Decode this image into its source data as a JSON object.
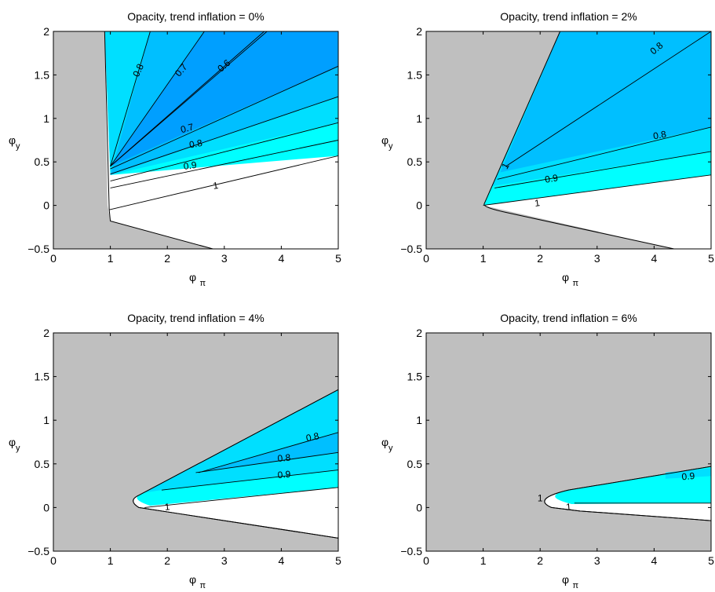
{
  "chart_data": [
    {
      "type": "contour",
      "title": "Opacity, trend inflation = 0%",
      "xlabel": {
        "base": "φ",
        "sub": "π"
      },
      "ylabel": {
        "base": "φ",
        "sub": "y"
      },
      "xlim": [
        0,
        5
      ],
      "ylim": [
        -0.5,
        2
      ],
      "xticks": [
        0,
        1,
        2,
        3,
        4,
        5
      ],
      "yticks": [
        -0.5,
        0,
        0.5,
        1,
        1.5,
        2
      ],
      "ytick_labels": [
        "−0.5",
        "0",
        "0.5",
        "1",
        "1.5",
        "2"
      ],
      "colors": {
        "indeterminate": "#BFBFBF",
        "level_1": "#FFFFFF",
        "level_0.9": "#00FFFF",
        "level_0.8": "#00DFFF",
        "level_0.7": "#00BFFF",
        "level_0.6": "#009FFF"
      },
      "indeterminate_region": [
        [
          0,
          2
        ],
        [
          0.9,
          2
        ],
        [
          0.95,
          0
        ],
        [
          1.0,
          -0.18
        ],
        [
          2.8,
          -0.5
        ],
        [
          0,
          -0.5
        ]
      ],
      "fan_origin": [
        1.0,
        0.35
      ],
      "contour_lines": [
        {
          "level": "1",
          "points": [
            [
              0.98,
              -0.05
            ],
            [
              5,
              0.57
            ]
          ]
        },
        {
          "level": "0.9",
          "points": [
            [
              1.0,
              0.2
            ],
            [
              5,
              0.75
            ]
          ]
        },
        {
          "level": "0.9",
          "points": [
            [
              1.0,
              0.28
            ],
            [
              5,
              0.95
            ]
          ]
        },
        {
          "level": "0.8",
          "points": [
            [
              1.0,
              0.36
            ],
            [
              5,
              1.25
            ]
          ]
        },
        {
          "level": "0.7",
          "points": [
            [
              1.0,
              0.42
            ],
            [
              5,
              1.6
            ]
          ]
        },
        {
          "level": "0.6",
          "points": [
            [
              1.0,
              0.45
            ],
            [
              3.7,
              2.0
            ]
          ]
        },
        {
          "level": "0.6",
          "points": [
            [
              1.0,
              0.45
            ],
            [
              3.75,
              2.0
            ]
          ]
        },
        {
          "level": "0.7",
          "points": [
            [
              1.0,
              0.45
            ],
            [
              2.65,
              2.0
            ]
          ]
        },
        {
          "level": "0.8",
          "points": [
            [
              1.0,
              0.45
            ],
            [
              1.7,
              2.0
            ]
          ]
        }
      ],
      "contour_labels": [
        {
          "text": "0.8",
          "at": [
            1.5,
            1.55
          ],
          "angle": -65
        },
        {
          "text": "0.7",
          "at": [
            2.25,
            1.55
          ],
          "angle": -50
        },
        {
          "text": "0.6",
          "at": [
            3.0,
            1.6
          ],
          "angle": -40
        },
        {
          "text": "0.7",
          "at": [
            2.35,
            0.88
          ],
          "angle": -15
        },
        {
          "text": "0.8",
          "at": [
            2.5,
            0.7
          ],
          "angle": -10
        },
        {
          "text": "0.9",
          "at": [
            2.4,
            0.45
          ],
          "angle": -8
        },
        {
          "text": "1",
          "at": [
            2.85,
            0.22
          ],
          "angle": -8
        }
      ]
    },
    {
      "type": "contour",
      "title": "Opacity, trend inflation = 2%",
      "xlabel": {
        "base": "φ",
        "sub": "π"
      },
      "ylabel": {
        "base": "φ",
        "sub": "y"
      },
      "xlim": [
        0,
        5
      ],
      "ylim": [
        -0.5,
        2
      ],
      "xticks": [
        0,
        1,
        2,
        3,
        4,
        5
      ],
      "yticks": [
        -0.5,
        0,
        0.5,
        1,
        1.5,
        2
      ],
      "ytick_labels": [
        "−0.5",
        "0",
        "0.5",
        "1",
        "1.5",
        "2"
      ],
      "colors": {
        "indeterminate": "#BFBFBF",
        "level_1": "#FFFFFF",
        "level_0.9": "#00FFFF",
        "level_0.8": "#00DFFF",
        "level_0.7": "#00BFFF"
      },
      "indeterminate_region": [
        [
          0,
          2
        ],
        [
          2.35,
          2
        ],
        [
          1.0,
          0.0
        ],
        [
          4.35,
          -0.5
        ],
        [
          0,
          -0.5
        ]
      ],
      "fan_origin": [
        1.0,
        0.0
      ],
      "contour_lines": [
        {
          "level": "1",
          "points": [
            [
              1.0,
              0.0
            ],
            [
              5,
              0.35
            ]
          ]
        },
        {
          "level": "0.9",
          "points": [
            [
              1.2,
              0.2
            ],
            [
              5,
              0.62
            ]
          ]
        },
        {
          "level": "0.8",
          "points": [
            [
              1.25,
              0.3
            ],
            [
              5,
              0.9
            ]
          ]
        },
        {
          "level": "0.8",
          "points": [
            [
              1.4,
              0.45
            ],
            [
              5,
              2.0
            ]
          ]
        }
      ],
      "contour_labels": [
        {
          "text": "0.8",
          "at": [
            4.05,
            1.8
          ],
          "angle": -40
        },
        {
          "text": "0.8",
          "at": [
            4.1,
            0.8
          ],
          "angle": -10
        },
        {
          "text": "0.9",
          "at": [
            2.2,
            0.3
          ],
          "angle": -10
        },
        {
          "text": "1",
          "at": [
            1.95,
            0.02
          ],
          "angle": -8
        },
        {
          "text": "1",
          "at": [
            1.4,
            0.45
          ],
          "angle": -60
        }
      ]
    },
    {
      "type": "contour",
      "title": "Opacity, trend inflation = 4%",
      "xlabel": {
        "base": "φ",
        "sub": "π"
      },
      "ylabel": {
        "base": "φ",
        "sub": "y"
      },
      "xlim": [
        0,
        5
      ],
      "ylim": [
        -0.5,
        2
      ],
      "xticks": [
        0,
        1,
        2,
        3,
        4,
        5
      ],
      "yticks": [
        -0.5,
        0,
        0.5,
        1,
        1.5,
        2
      ],
      "ytick_labels": [
        "−0.5",
        "0",
        "0.5",
        "1",
        "1.5",
        "2"
      ],
      "colors": {
        "indeterminate": "#BFBFBF",
        "level_1": "#FFFFFF",
        "level_0.9": "#00FFFF",
        "level_0.8": "#00DFFF",
        "level_0.7": "#00BFFF"
      },
      "fan_origin": [
        1.35,
        0.08
      ],
      "contour_lines": [
        {
          "level": "1",
          "points": [
            [
              1.6,
              0.0
            ],
            [
              5,
              0.23
            ]
          ]
        },
        {
          "level": "0.9",
          "points": [
            [
              1.9,
              0.2
            ],
            [
              5,
              0.43
            ]
          ]
        },
        {
          "level": "0.8",
          "points": [
            [
              2.5,
              0.4
            ],
            [
              5,
              0.63
            ]
          ]
        },
        {
          "level": "0.8",
          "points": [
            [
              2.55,
              0.4
            ],
            [
              5,
              0.86
            ]
          ]
        }
      ],
      "contour_labels": [
        {
          "text": "0.8",
          "at": [
            4.55,
            0.8
          ],
          "angle": -12
        },
        {
          "text": "0.8",
          "at": [
            4.05,
            0.56
          ],
          "angle": -6
        },
        {
          "text": "0.9",
          "at": [
            4.05,
            0.37
          ],
          "angle": -5
        },
        {
          "text": "1",
          "at": [
            2.0,
            0.0
          ],
          "angle": -5
        }
      ]
    },
    {
      "type": "contour",
      "title": "Opacity, trend inflation = 6%",
      "xlabel": {
        "base": "φ",
        "sub": "π"
      },
      "ylabel": {
        "base": "φ",
        "sub": "y"
      },
      "xlim": [
        0,
        5
      ],
      "ylim": [
        -0.5,
        2
      ],
      "xticks": [
        0,
        1,
        2,
        3,
        4,
        5
      ],
      "yticks": [
        -0.5,
        0,
        0.5,
        1,
        1.5,
        2
      ],
      "ytick_labels": [
        "−0.5",
        "0",
        "0.5",
        "1",
        "1.5",
        "2"
      ],
      "colors": {
        "indeterminate": "#BFBFBF",
        "level_1": "#FFFFFF",
        "level_0.9": "#00FFFF",
        "level_0.8": "#00DFFF"
      },
      "fan_origin": [
        1.95,
        0.08
      ],
      "contour_lines": [
        {
          "level": "1",
          "points": [
            [
              2.6,
              0.05
            ],
            [
              5,
              0.05
            ]
          ]
        }
      ],
      "contour_labels": [
        {
          "text": "0.9",
          "at": [
            4.6,
            0.35
          ],
          "angle": -5
        },
        {
          "text": "1",
          "at": [
            2.5,
            0.0
          ],
          "angle": -5
        },
        {
          "text": "1",
          "at": [
            2.0,
            0.1
          ],
          "angle": 0
        }
      ]
    }
  ]
}
